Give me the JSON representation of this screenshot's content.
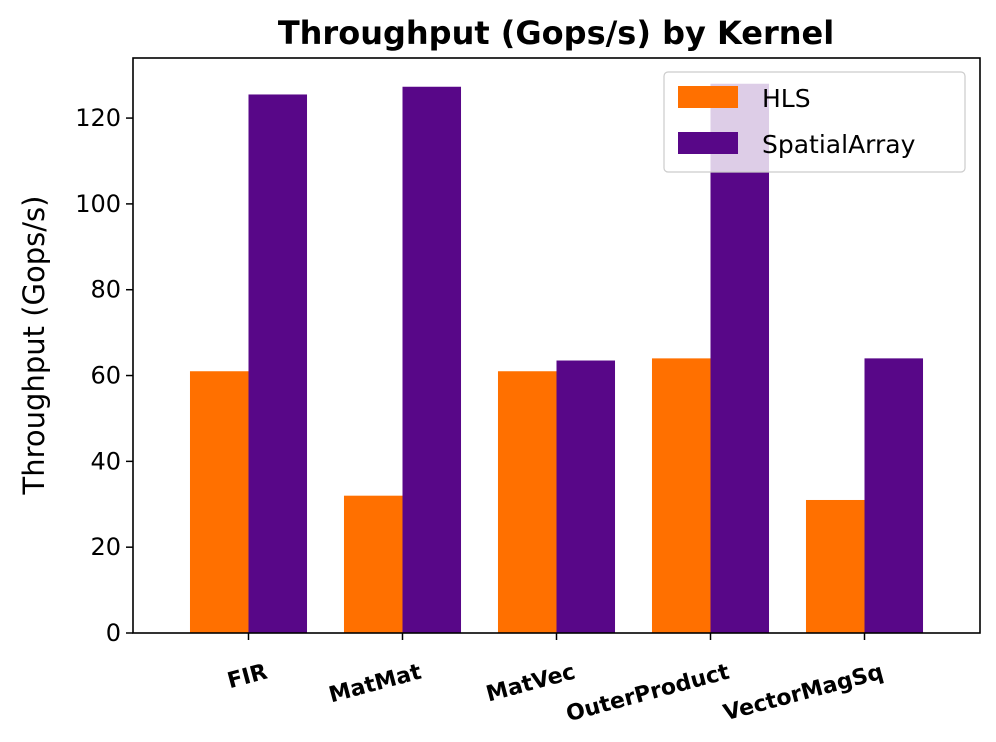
{
  "chart_data": {
    "type": "bar",
    "title": "Throughput (Gops/s) by Kernel",
    "xlabel": "",
    "ylabel": "Throughput (Gops/s)",
    "ylim": [
      0,
      134
    ],
    "yticks": [
      0,
      20,
      40,
      60,
      80,
      100,
      120
    ],
    "categories": [
      "FIR",
      "MatMat",
      "MatVec",
      "OuterProduct",
      "VectorMagSq"
    ],
    "series": [
      {
        "name": "HLS",
        "color": "#ff7000",
        "values": [
          61,
          32,
          61,
          64,
          31
        ]
      },
      {
        "name": "SpatialArray",
        "color": "#580788",
        "values": [
          125.5,
          127.3,
          63.5,
          128,
          64
        ]
      }
    ],
    "legend_position": "top-right",
    "grid": false
  }
}
